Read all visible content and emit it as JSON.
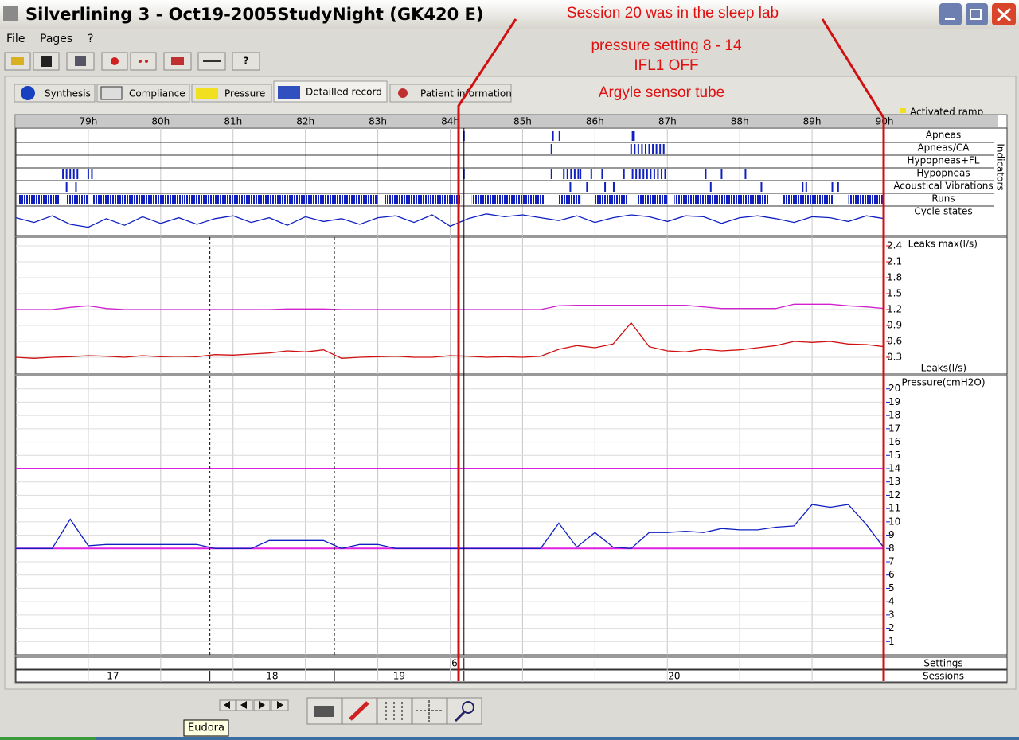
{
  "window": {
    "title": "Silverlining 3 - Oct19-2005StudyNight (GK420 E)"
  },
  "menu": [
    "File",
    "Pages",
    "?"
  ],
  "tabs": [
    "Synthesis",
    "Compliance",
    "Pressure",
    "Detailled record",
    "Patient information"
  ],
  "annotations": [
    "Session 20  was in the sleep lab",
    "pressure setting 8 - 14",
    "IFL1  OFF",
    "Argyle sensor tube"
  ],
  "legend": "Activated ramp",
  "tooltip": "Eudora",
  "time": {
    "xlim": [
      78,
      90
    ],
    "ticks": [
      {
        "value": 79,
        "label": "79h"
      },
      {
        "value": 80,
        "label": "80h"
      },
      {
        "value": 81,
        "label": "81h"
      },
      {
        "value": 82,
        "label": "82h"
      },
      {
        "value": 83,
        "label": "83h"
      },
      {
        "value": 84,
        "label": "84h"
      },
      {
        "value": 85,
        "label": "85h"
      },
      {
        "value": 86,
        "label": "86h"
      },
      {
        "value": 87,
        "label": "87h"
      },
      {
        "value": 88,
        "label": "88h"
      },
      {
        "value": 89,
        "label": "89h"
      },
      {
        "value": 90,
        "label": "90h"
      }
    ],
    "x": [
      78,
      78.25,
      78.5,
      78.75,
      79,
      79.25,
      79.5,
      79.75,
      80,
      80.25,
      80.5,
      80.75,
      81,
      81.25,
      81.5,
      81.75,
      82,
      82.25,
      82.5,
      82.75,
      83,
      83.25,
      83.5,
      83.75,
      84,
      84.25,
      84.5,
      84.75,
      85,
      85.25,
      85.5,
      85.75,
      86,
      86.25,
      86.5,
      86.75,
      87,
      87.25,
      87.5,
      87.75,
      88,
      88.25,
      88.5,
      88.75,
      89,
      89.25,
      89.5,
      89.75,
      90
    ]
  },
  "indicators": {
    "title": "Indicators",
    "rows": [
      {
        "name": "Apneas",
        "events": [
          84.19,
          85.42,
          85.51,
          86.52,
          86.54
        ]
      },
      {
        "name": "Apneas/CA",
        "events": [
          85.4,
          86.5,
          86.55,
          86.6,
          86.65,
          86.7,
          86.75,
          86.8,
          86.85,
          86.9,
          86.95
        ]
      },
      {
        "name": "Hypopneas+FL",
        "events": []
      },
      {
        "name": "Hypopneas",
        "events": [
          78.65,
          78.7,
          78.75,
          78.8,
          78.85,
          79.0,
          79.05,
          84.19,
          85.4,
          85.57,
          85.62,
          85.67,
          85.72,
          85.77,
          85.8,
          85.95,
          86.1,
          86.4,
          86.52,
          86.57,
          86.62,
          86.67,
          86.72,
          86.77,
          86.82,
          86.87,
          86.92,
          86.97,
          87.53,
          87.75,
          88.08
        ]
      },
      {
        "name": "Acoustical Vibrations",
        "events": [
          78.7,
          78.83,
          85.66,
          85.89,
          86.14,
          86.26,
          87.6,
          88.3,
          88.87,
          88.92,
          89.28,
          89.36
        ]
      },
      {
        "name": "Runs",
        "intervals": [
          [
            78.03,
            78.6
          ],
          [
            78.7,
            79.0
          ],
          [
            79.05,
            83.0
          ],
          [
            83.1,
            84.15
          ],
          [
            84.3,
            85.3
          ],
          [
            85.5,
            85.8
          ],
          [
            86.0,
            86.45
          ],
          [
            86.6,
            87.0
          ],
          [
            87.1,
            88.4
          ],
          [
            88.6,
            89.3
          ],
          [
            89.5,
            90.0
          ]
        ]
      },
      {
        "name": "Cycle states",
        "values": [
          0.2,
          -0.3,
          0.4,
          -0.5,
          -0.8,
          0.1,
          -0.6,
          0.3,
          -0.4,
          0.2,
          -0.5,
          0.1,
          0.4,
          -0.3,
          0.2,
          -0.6,
          0.3,
          -0.2,
          0.1,
          -0.5,
          0.2,
          0.4,
          -0.3,
          0.5,
          -0.7,
          0.1,
          0.6,
          0.3,
          0.5,
          0.2,
          -0.1,
          0.4,
          -0.3,
          0.2,
          0.5,
          0.3,
          -0.2,
          0.4,
          0.3,
          -0.4,
          0.2,
          0.4,
          0.1,
          -0.3,
          0.3,
          0.2,
          -0.2,
          0.4,
          0.1
        ]
      }
    ]
  },
  "leaks": {
    "ylim": [
      0,
      2.55
    ],
    "yticks": [
      0.3,
      0.6,
      0.9,
      1.2,
      1.5,
      1.8,
      2.1,
      2.4
    ],
    "series": [
      {
        "name": "Leaks max(l/s)",
        "color": "#d020d0",
        "values": [
          1.2,
          1.2,
          1.2,
          1.24,
          1.27,
          1.22,
          1.2,
          1.2,
          1.2,
          1.2,
          1.2,
          1.2,
          1.2,
          1.2,
          1.2,
          1.21,
          1.21,
          1.21,
          1.2,
          1.2,
          1.2,
          1.2,
          1.2,
          1.2,
          1.2,
          1.2,
          1.2,
          1.2,
          1.2,
          1.2,
          1.27,
          1.28,
          1.28,
          1.28,
          1.28,
          1.28,
          1.28,
          1.28,
          1.25,
          1.22,
          1.22,
          1.22,
          1.22,
          1.3,
          1.3,
          1.3,
          1.27,
          1.25,
          1.22
        ]
      },
      {
        "name": "Leaks(l/s)",
        "color": "#d01010",
        "values": [
          0.3,
          0.28,
          0.3,
          0.31,
          0.33,
          0.32,
          0.3,
          0.33,
          0.31,
          0.32,
          0.31,
          0.35,
          0.34,
          0.36,
          0.38,
          0.42,
          0.4,
          0.44,
          0.28,
          0.3,
          0.31,
          0.32,
          0.3,
          0.3,
          0.33,
          0.32,
          0.3,
          0.31,
          0.3,
          0.32,
          0.45,
          0.52,
          0.48,
          0.55,
          0.95,
          0.5,
          0.42,
          0.4,
          0.45,
          0.42,
          0.44,
          0.48,
          0.52,
          0.6,
          0.58,
          0.6,
          0.55,
          0.54,
          0.5
        ]
      }
    ]
  },
  "pressure": {
    "ylim": [
      0,
      21
    ],
    "yticks": [
      1,
      2,
      3,
      4,
      5,
      6,
      7,
      8,
      9,
      10,
      11,
      12,
      13,
      14,
      15,
      16,
      17,
      18,
      19,
      20
    ],
    "limits": [
      8,
      14
    ],
    "limit_color": "#e020e0",
    "series": [
      {
        "name": "Pressure(cmH2O)",
        "color": "#1020c0",
        "values": [
          8,
          8,
          8,
          10.2,
          8.2,
          8.3,
          8.3,
          8.3,
          8.3,
          8.3,
          8.3,
          8,
          8,
          8,
          8.6,
          8.6,
          8.6,
          8.6,
          8,
          8.3,
          8.3,
          8,
          8,
          8,
          8,
          8,
          8,
          8,
          8,
          8,
          9.9,
          8.1,
          9.2,
          8.1,
          8,
          9.2,
          9.2,
          9.3,
          9.2,
          9.5,
          9.4,
          9.4,
          9.6,
          9.7,
          11.3,
          11.1,
          11.3,
          9.8,
          8
        ]
      }
    ]
  },
  "settings": {
    "label": "Settings",
    "items": [
      {
        "name": "6",
        "start": 78,
        "end": 84.19
      }
    ]
  },
  "sessions": {
    "label": "Sessions",
    "items": [
      {
        "name": "17",
        "start": 78,
        "end": 80.68
      },
      {
        "name": "18",
        "start": 80.68,
        "end": 82.4
      },
      {
        "name": "19",
        "start": 82.4,
        "end": 84.19
      },
      {
        "name": "20",
        "start": 84.19,
        "end": 90
      }
    ]
  }
}
